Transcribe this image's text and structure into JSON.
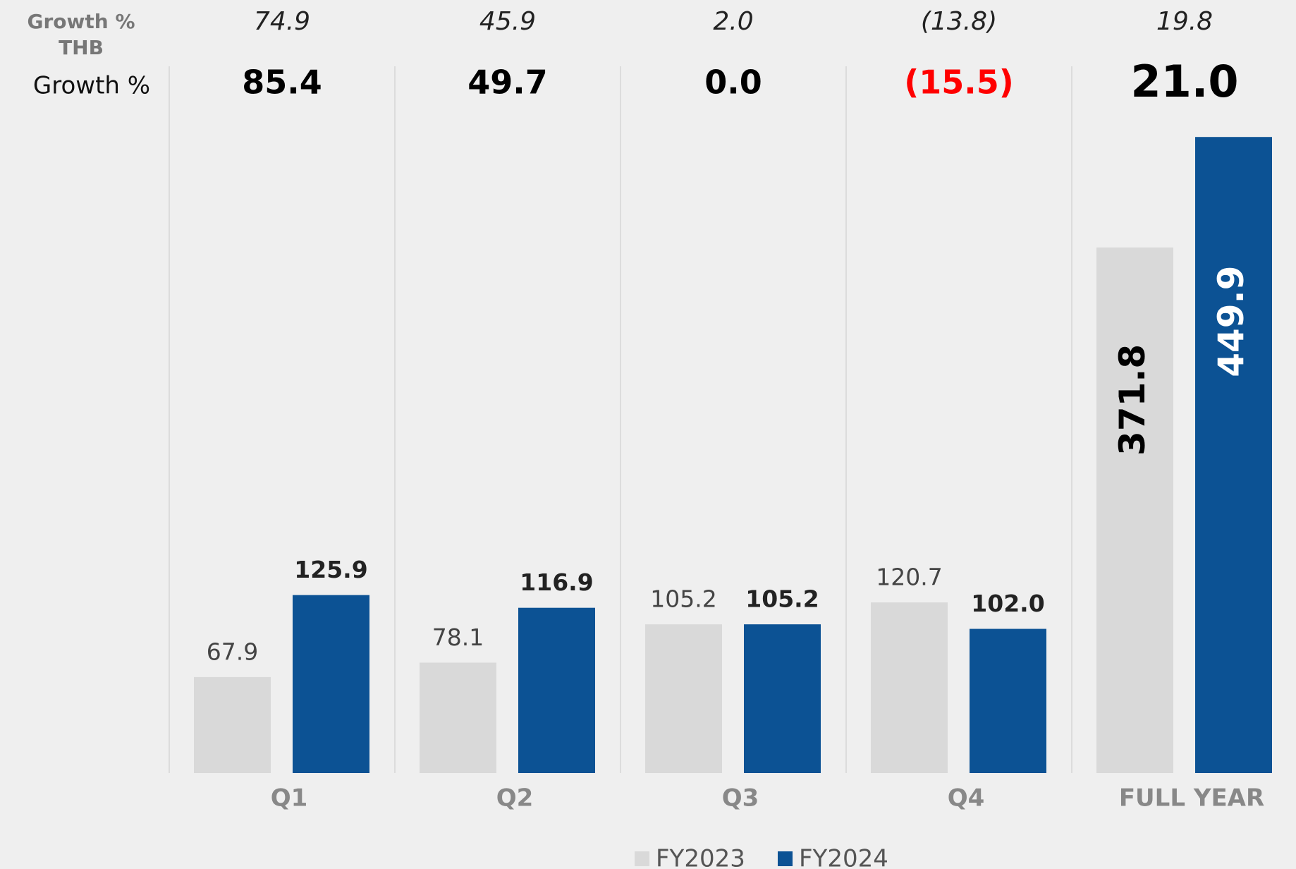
{
  "chart_data": {
    "type": "bar",
    "categories": [
      "Q1",
      "Q2",
      "Q3",
      "Q4",
      "FULL YEAR"
    ],
    "series": [
      {
        "name": "FY2023",
        "color": "#d9d9d9",
        "label_color": "#444444",
        "values": [
          67.9,
          78.1,
          105.2,
          120.7,
          371.8
        ],
        "value_labels": [
          "67.9",
          "78.1",
          "105.2",
          "120.7",
          "371.8"
        ]
      },
      {
        "name": "FY2024",
        "color": "#0c5294",
        "label_color": "#222222",
        "values": [
          125.9,
          116.9,
          105.2,
          102.0,
          449.9
        ],
        "value_labels": [
          "125.9",
          "116.9",
          "105.2",
          "102.0",
          "449.9"
        ]
      }
    ],
    "growth_rows": [
      {
        "label_lines": [
          "Growth %",
          "THB"
        ],
        "values": [
          74.9,
          45.9,
          2.0,
          -13.8,
          19.8
        ],
        "value_labels": [
          "74.9",
          "45.9",
          "2.0",
          "(13.8)",
          "19.8"
        ]
      },
      {
        "label_lines": [
          "Growth %"
        ],
        "values": [
          85.4,
          49.7,
          0.0,
          -15.5,
          21.0
        ],
        "value_labels": [
          "85.4",
          "49.7",
          "0.0",
          "(15.5)",
          "21.0"
        ],
        "negative_color": "#ff0000"
      }
    ],
    "ylim": [
      0,
      450
    ],
    "legend": "bottom"
  }
}
